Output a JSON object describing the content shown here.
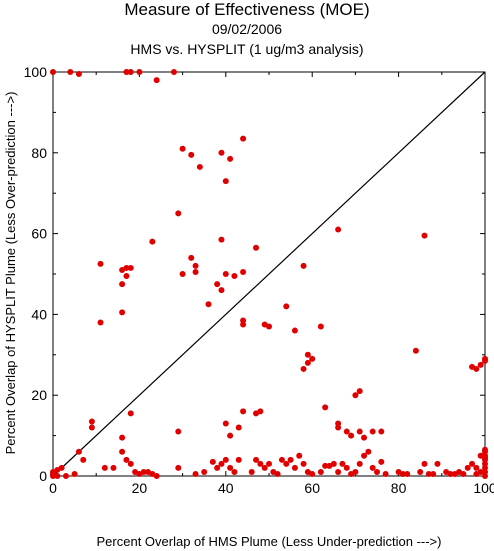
{
  "chart_data": {
    "type": "scatter",
    "title": "Measure of Effectiveness (MOE)",
    "subtitle": "09/02/2006",
    "subtitle2": "HMS vs. HYSPLIT  (1 ug/m3 analysis)",
    "xlabel": "Percent Overlap of HMS Plume (Less Under-prediction --->)",
    "ylabel": "Percent Overlap of HYSPLIT Plume (Less Over-prediction --->)",
    "xlim": [
      0,
      100
    ],
    "ylim": [
      0,
      100
    ],
    "x_ticks": [
      "0",
      "20",
      "40",
      "60",
      "80",
      "100"
    ],
    "y_ticks": [
      "0",
      "20",
      "40",
      "60",
      "80",
      "100"
    ],
    "grid": false,
    "reference_line": "y = x",
    "marker_color": "#e00000",
    "line_color": "#000000",
    "series": [
      {
        "points": [
          [
            0,
            100
          ],
          [
            4,
            100
          ],
          [
            6,
            99.5
          ],
          [
            17,
            100
          ],
          [
            18,
            100
          ],
          [
            20,
            100
          ],
          [
            28,
            100
          ],
          [
            24,
            98
          ],
          [
            30,
            81
          ],
          [
            32,
            79.5
          ],
          [
            34,
            76.5
          ],
          [
            39,
            80
          ],
          [
            41,
            78.5
          ],
          [
            44,
            83.5
          ],
          [
            40,
            73
          ],
          [
            29,
            65
          ],
          [
            23,
            58
          ],
          [
            39,
            58.5
          ],
          [
            47,
            56.5
          ],
          [
            66,
            61
          ],
          [
            86,
            59.5
          ],
          [
            11,
            52.5
          ],
          [
            16,
            51
          ],
          [
            17,
            51.5
          ],
          [
            17,
            49.5
          ],
          [
            18,
            51.5
          ],
          [
            16,
            47.5
          ],
          [
            16,
            40.5
          ],
          [
            11,
            38
          ],
          [
            32,
            54
          ],
          [
            33,
            52
          ],
          [
            30,
            50
          ],
          [
            33,
            50.5
          ],
          [
            38,
            47.5
          ],
          [
            39,
            46
          ],
          [
            40,
            50
          ],
          [
            42,
            49.5
          ],
          [
            44,
            50.5
          ],
          [
            36,
            42.5
          ],
          [
            44,
            38.5
          ],
          [
            44,
            37.5
          ],
          [
            49,
            37.5
          ],
          [
            50,
            37
          ],
          [
            54,
            42
          ],
          [
            56,
            36
          ],
          [
            62,
            37
          ],
          [
            58,
            52
          ],
          [
            59,
            30
          ],
          [
            59,
            28
          ],
          [
            60,
            29
          ],
          [
            58,
            26.5
          ],
          [
            84,
            31
          ],
          [
            63,
            17
          ],
          [
            97,
            27
          ],
          [
            98,
            26.5
          ],
          [
            99,
            27.5
          ],
          [
            100,
            29
          ],
          [
            100,
            28.5
          ],
          [
            70,
            20
          ],
          [
            71,
            21
          ],
          [
            44,
            16
          ],
          [
            47,
            15.5
          ],
          [
            48,
            16
          ],
          [
            41,
            10
          ],
          [
            9,
            13.5
          ],
          [
            9,
            12
          ],
          [
            18,
            15.5
          ],
          [
            16,
            9.5
          ],
          [
            29,
            11
          ],
          [
            43,
            12
          ],
          [
            40,
            13
          ],
          [
            66,
            13
          ],
          [
            66,
            12
          ],
          [
            68,
            11
          ],
          [
            69,
            10
          ],
          [
            71,
            11
          ],
          [
            72,
            9.5
          ],
          [
            74,
            11
          ],
          [
            76,
            11
          ],
          [
            0,
            0
          ],
          [
            0,
            0.5
          ],
          [
            0,
            1
          ],
          [
            1,
            0
          ],
          [
            1,
            1.5
          ],
          [
            2,
            2
          ],
          [
            3,
            0
          ],
          [
            5,
            0.5
          ],
          [
            6,
            6
          ],
          [
            7,
            4
          ],
          [
            12,
            2
          ],
          [
            14,
            2
          ],
          [
            16,
            6
          ],
          [
            17,
            4
          ],
          [
            18,
            3
          ],
          [
            19,
            1
          ],
          [
            20,
            0.5
          ],
          [
            21,
            1
          ],
          [
            22,
            1
          ],
          [
            23,
            0.5
          ],
          [
            24,
            0
          ],
          [
            29,
            2
          ],
          [
            33,
            0.5
          ],
          [
            35,
            1
          ],
          [
            37,
            3.5
          ],
          [
            38,
            2
          ],
          [
            39,
            3
          ],
          [
            40,
            4
          ],
          [
            41,
            2
          ],
          [
            42,
            1
          ],
          [
            43,
            4
          ],
          [
            46,
            1
          ],
          [
            47,
            4
          ],
          [
            48,
            3
          ],
          [
            49,
            2
          ],
          [
            50,
            3
          ],
          [
            51,
            1
          ],
          [
            52,
            0.5
          ],
          [
            53,
            4
          ],
          [
            54,
            3
          ],
          [
            55,
            4
          ],
          [
            56,
            2
          ],
          [
            57,
            5
          ],
          [
            58,
            3
          ],
          [
            59,
            1
          ],
          [
            60,
            0.5
          ],
          [
            62,
            1
          ],
          [
            63,
            2.5
          ],
          [
            64,
            2.5
          ],
          [
            65,
            3
          ],
          [
            66,
            1
          ],
          [
            67,
            3
          ],
          [
            68,
            2
          ],
          [
            69,
            0.5
          ],
          [
            70,
            1
          ],
          [
            71,
            3
          ],
          [
            72,
            5
          ],
          [
            73,
            6
          ],
          [
            74,
            2
          ],
          [
            75,
            1
          ],
          [
            76,
            3.5
          ],
          [
            77,
            0.5
          ],
          [
            80,
            1
          ],
          [
            81,
            0.5
          ],
          [
            82,
            0.5
          ],
          [
            85,
            1
          ],
          [
            86,
            3
          ],
          [
            87,
            0.5
          ],
          [
            88,
            0.5
          ],
          [
            89,
            3
          ],
          [
            91,
            1
          ],
          [
            92,
            0.5
          ],
          [
            93,
            0.5
          ],
          [
            94,
            1
          ],
          [
            95,
            0.5
          ],
          [
            96,
            2
          ],
          [
            97,
            3
          ],
          [
            98,
            2
          ],
          [
            98,
            0.5
          ],
          [
            99,
            1
          ],
          [
            100,
            0
          ],
          [
            100,
            1
          ],
          [
            100,
            2
          ],
          [
            100,
            3
          ],
          [
            100,
            4
          ],
          [
            100,
            5
          ],
          [
            100,
            6
          ],
          [
            100,
            6.5
          ],
          [
            100,
            4.5
          ],
          [
            99,
            5
          ]
        ]
      }
    ]
  }
}
